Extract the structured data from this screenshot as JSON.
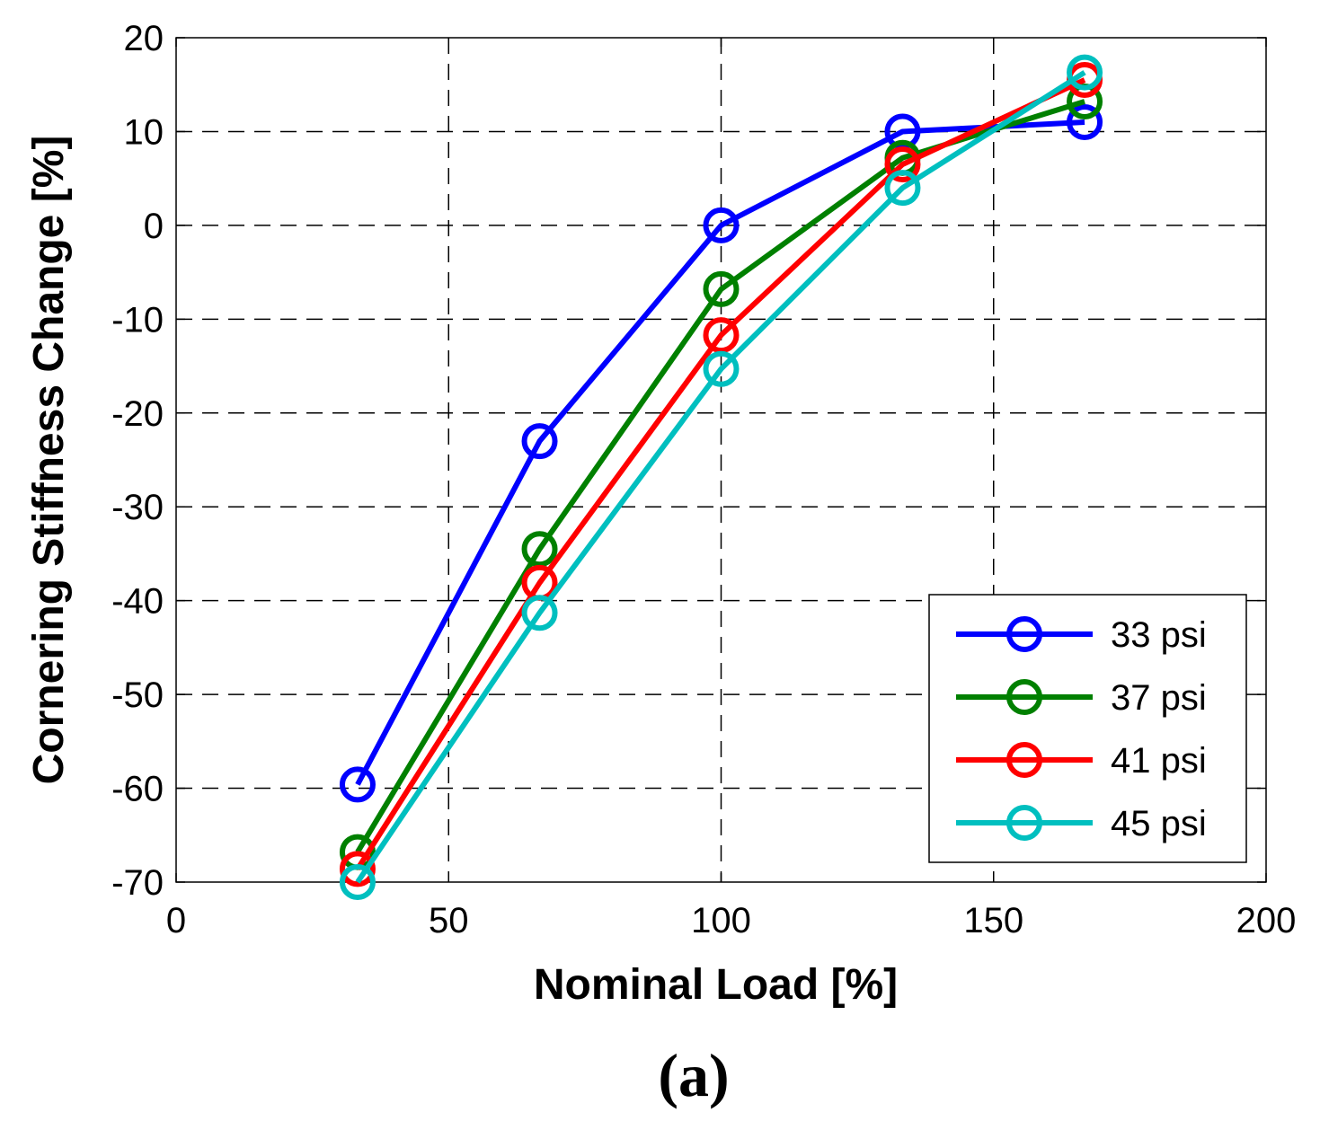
{
  "chart_data": {
    "type": "line",
    "title": "",
    "xlabel": "Nominal Load [%]",
    "ylabel": "Cornering Stiffness Change [%]",
    "panel_label": "(a)",
    "xlim": [
      0,
      200
    ],
    "ylim": [
      -70,
      20
    ],
    "xticks": [
      0,
      50,
      100,
      150,
      200
    ],
    "yticks": [
      20,
      10,
      0,
      -10,
      -20,
      -30,
      -40,
      -50,
      -60,
      -70
    ],
    "grid": true,
    "legend_position": "bottom-right",
    "x": [
      33.3,
      66.7,
      100,
      133.3,
      166.7
    ],
    "series": [
      {
        "name": "33 psi",
        "color": "#0000ff",
        "values": [
          -59.6,
          -23,
          0,
          10,
          11
        ]
      },
      {
        "name": "37 psi",
        "color": "#008000",
        "values": [
          -66.8,
          -34.5,
          -6.8,
          7.2,
          13.2
        ]
      },
      {
        "name": "41 psi",
        "color": "#ff0000",
        "values": [
          -68.6,
          -38.1,
          -11.7,
          6.5,
          15.5
        ]
      },
      {
        "name": "45 psi",
        "color": "#00bfbf",
        "values": [
          -70,
          -41.3,
          -15.3,
          4,
          16.3
        ]
      }
    ]
  }
}
